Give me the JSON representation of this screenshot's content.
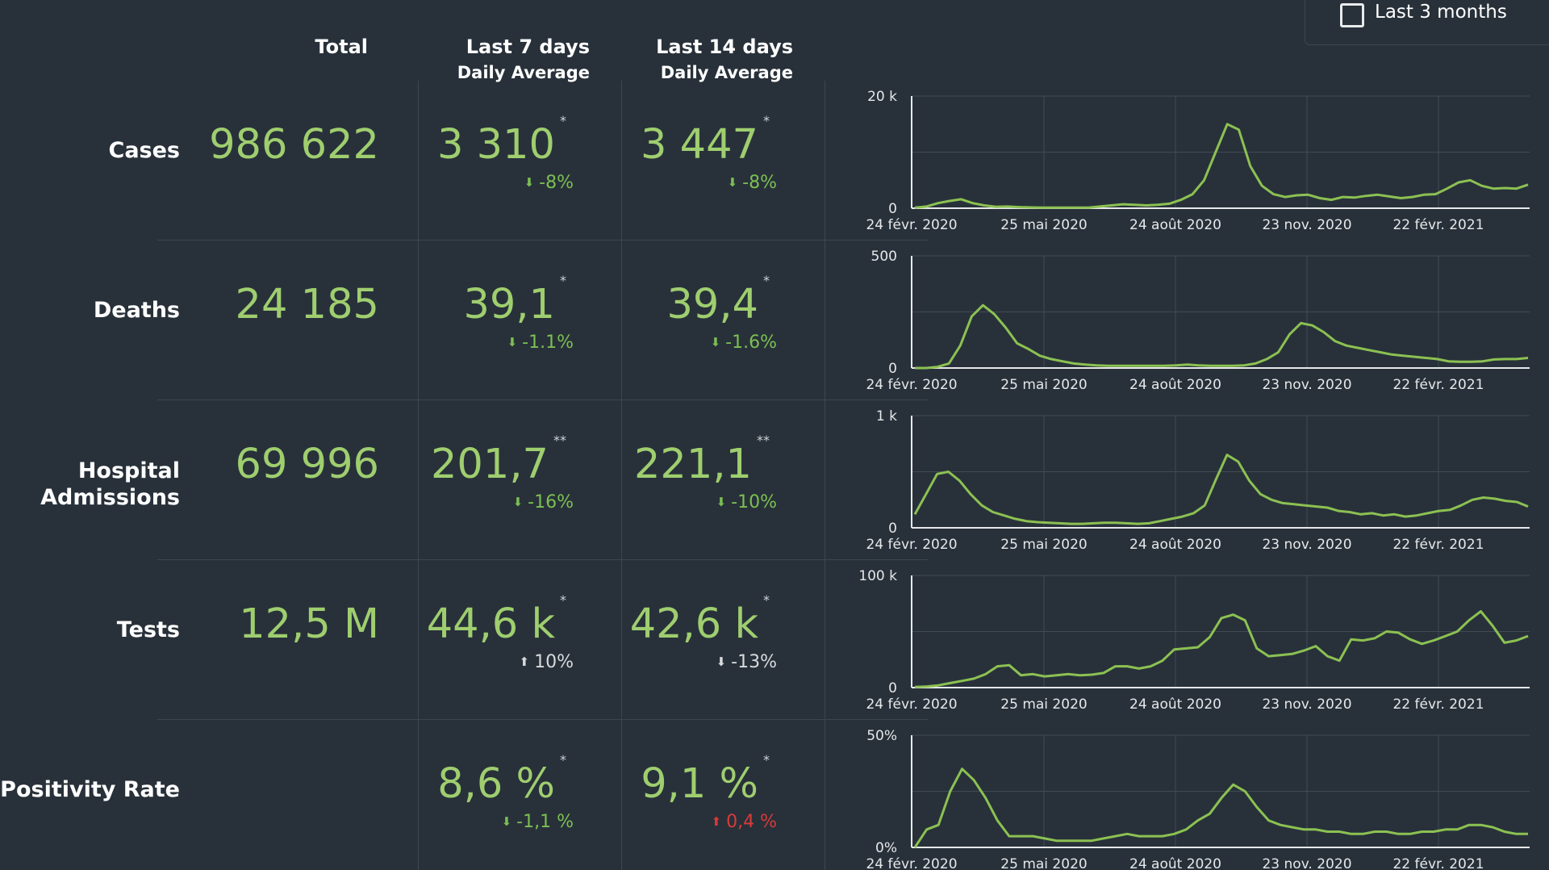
{
  "filter": {
    "label": "Last 3 months",
    "checked": false
  },
  "columns": {
    "total": "Total",
    "last7": "Last 7 days",
    "last7_sub": "Daily Average",
    "last14": "Last 14 days",
    "last14_sub": "Daily Average"
  },
  "rows": [
    {
      "label": "Cases",
      "total": "986 622",
      "avg7": "3 310",
      "avg7_mark": "*",
      "chg7": "-8%",
      "chg7_dir": "down",
      "chg7_color": "#7cbf52",
      "avg14": "3 447",
      "avg14_mark": "*",
      "chg14": "-8%",
      "chg14_dir": "down",
      "chg14_color": "#7cbf52"
    },
    {
      "label": "Deaths",
      "total": "24 185",
      "avg7": "39,1",
      "avg7_mark": "*",
      "chg7": "-1.1%",
      "chg7_dir": "down",
      "chg7_color": "#7cbf52",
      "avg14": "39,4",
      "avg14_mark": "*",
      "chg14": "-1.6%",
      "chg14_dir": "down",
      "chg14_color": "#7cbf52"
    },
    {
      "label_line1": "Hospital",
      "label_line2": "Admissions",
      "total": "69 996",
      "avg7": "201,7",
      "avg7_mark": "**",
      "chg7": "-16%",
      "chg7_dir": "down",
      "chg7_color": "#7cbf52",
      "avg14": "221,1",
      "avg14_mark": "**",
      "chg14": "-10%",
      "chg14_dir": "down",
      "chg14_color": "#7cbf52"
    },
    {
      "label": "Tests",
      "total": "12,5 M",
      "avg7": "44,6 k",
      "avg7_mark": "*",
      "chg7": "10%",
      "chg7_dir": "up",
      "chg7_color": "#d8dadc",
      "avg14": "42,6 k",
      "avg14_mark": "*",
      "chg14": "-13%",
      "chg14_dir": "down",
      "chg14_color": "#d8dadc"
    },
    {
      "label": "Positivity Rate",
      "total": "",
      "avg7": "8,6 %",
      "avg7_mark": "*",
      "chg7": "-1,1 %",
      "chg7_dir": "down",
      "chg7_color": "#7cbf52",
      "avg14": "9,1 %",
      "avg14_mark": "*",
      "chg14": "0,4 %",
      "chg14_dir": "up",
      "chg14_color": "#d93a3a"
    }
  ],
  "colors": {
    "line": "#8cc152",
    "value_text": "#9fce6f",
    "background": "#28313a",
    "grid": "#414b55"
  },
  "chart_data": [
    {
      "type": "line",
      "name": "Cases",
      "x_ticks": [
        "24 févr. 2020",
        "25 mai 2020",
        "24 août 2020",
        "23 nov. 2020",
        "22 févr. 2021"
      ],
      "y_ticks": [
        "0",
        "20 k"
      ],
      "ylim": [
        0,
        20000
      ],
      "values": [
        100,
        300,
        900,
        1300,
        1600,
        900,
        500,
        250,
        300,
        200,
        150,
        100,
        100,
        100,
        100,
        100,
        300,
        500,
        700,
        600,
        500,
        600,
        800,
        1500,
        2500,
        5000,
        10000,
        15000,
        14000,
        7500,
        4000,
        2500,
        2000,
        2300,
        2400,
        1800,
        1500,
        2000,
        1900,
        2200,
        2400,
        2100,
        1800,
        2000,
        2400,
        2500,
        3500,
        4600,
        5000,
        4000,
        3500,
        3600,
        3500,
        4200
      ]
    },
    {
      "type": "line",
      "name": "Deaths",
      "x_ticks": [
        "24 févr. 2020",
        "25 mai 2020",
        "24 août 2020",
        "23 nov. 2020",
        "22 févr. 2021"
      ],
      "y_ticks": [
        "0",
        "500"
      ],
      "ylim": [
        0,
        500
      ],
      "values": [
        0,
        0,
        5,
        20,
        100,
        230,
        280,
        240,
        180,
        110,
        85,
        55,
        40,
        30,
        20,
        15,
        12,
        10,
        10,
        10,
        10,
        10,
        10,
        12,
        15,
        12,
        10,
        10,
        10,
        12,
        20,
        40,
        70,
        150,
        200,
        190,
        160,
        120,
        100,
        90,
        80,
        70,
        60,
        55,
        50,
        45,
        40,
        30,
        28,
        28,
        30,
        38,
        40,
        40,
        45
      ]
    },
    {
      "type": "line",
      "name": "Hospital Admissions",
      "x_ticks": [
        "24 févr. 2020",
        "25 mai 2020",
        "24 août 2020",
        "23 nov. 2020",
        "22 févr. 2021"
      ],
      "y_ticks": [
        "0",
        "1 k"
      ],
      "ylim": [
        0,
        1000
      ],
      "values": [
        120,
        300,
        480,
        500,
        420,
        300,
        200,
        140,
        110,
        80,
        60,
        50,
        45,
        40,
        35,
        35,
        40,
        45,
        45,
        40,
        35,
        40,
        60,
        80,
        100,
        130,
        200,
        430,
        650,
        590,
        420,
        300,
        250,
        220,
        210,
        200,
        190,
        180,
        150,
        140,
        120,
        130,
        110,
        120,
        100,
        110,
        130,
        150,
        160,
        200,
        250,
        270,
        260,
        240,
        230,
        190
      ]
    },
    {
      "type": "line",
      "name": "Tests",
      "x_ticks": [
        "24 févr. 2020",
        "25 mai 2020",
        "24 août 2020",
        "23 nov. 2020",
        "22 févr. 2021"
      ],
      "y_ticks": [
        "0",
        "100 k"
      ],
      "ylim": [
        0,
        100000
      ],
      "values": [
        500,
        1000,
        2000,
        4000,
        6000,
        8000,
        12000,
        19000,
        20000,
        11000,
        12000,
        10000,
        11000,
        12000,
        11000,
        11500,
        13000,
        19000,
        19000,
        17000,
        19000,
        24000,
        34000,
        35000,
        36000,
        45000,
        62000,
        65000,
        60000,
        35000,
        28000,
        29000,
        30000,
        33000,
        37000,
        28000,
        24000,
        43000,
        42000,
        44000,
        50000,
        49000,
        43000,
        39000,
        42000,
        46000,
        50000,
        60000,
        68000,
        55000,
        40000,
        42000,
        46000
      ]
    },
    {
      "type": "line",
      "name": "Positivity Rate",
      "x_ticks": [
        "24 févr. 2020",
        "25 mai 2020",
        "24 août 2020",
        "23 nov. 2020",
        "22 févr. 2021"
      ],
      "y_ticks": [
        "0%",
        "50%"
      ],
      "ylim": [
        0,
        50
      ],
      "values": [
        0,
        8,
        10,
        25,
        35,
        30,
        22,
        12,
        5,
        5,
        5,
        4,
        3,
        3,
        3,
        3,
        4,
        5,
        6,
        5,
        5,
        5,
        6,
        8,
        12,
        15,
        22,
        28,
        25,
        18,
        12,
        10,
        9,
        8,
        8,
        7,
        7,
        6,
        6,
        7,
        7,
        6,
        6,
        7,
        7,
        8,
        8,
        10,
        10,
        9,
        7,
        6,
        6
      ]
    }
  ]
}
